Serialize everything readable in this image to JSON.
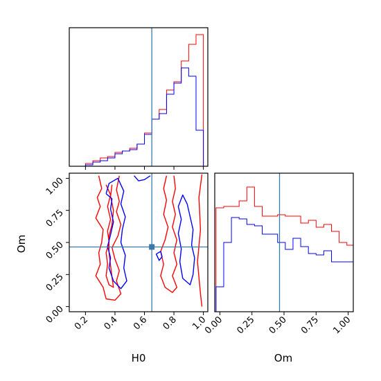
{
  "chart_data": {
    "type": "corner",
    "parameters": [
      "H0",
      "Om"
    ],
    "colors": {
      "red_run": "#ff0000",
      "blue_run": "#0000ff",
      "truth": "#3a78a8"
    },
    "truth": {
      "H0": 0.65,
      "Om": 0.465
    },
    "x_ticks": {
      "H0": {
        "values": [
          0.2,
          0.4,
          0.6,
          0.8,
          1.0
        ],
        "labels": [
          "0.2",
          "0.4",
          "0.6",
          "0.8",
          "1.0"
        ]
      },
      "Om": {
        "values": [
          0.0,
          0.25,
          0.5,
          0.75,
          1.0
        ],
        "labels": [
          "0.00",
          "0.25",
          "0.50",
          "0.75",
          "1.00"
        ]
      }
    },
    "y_ticks": {
      "Om": {
        "values": [
          0.0,
          0.25,
          0.5,
          0.75,
          1.0
        ],
        "labels": [
          "0.00",
          "0.25",
          "0.50",
          "0.75",
          "1.00"
        ]
      }
    },
    "axis_labels": {
      "x_left": "H0",
      "x_right": "Om",
      "y_bottom_left": "Om"
    },
    "xlim": {
      "H0": [
        0.09,
        1.03
      ],
      "Om": [
        -0.04,
        1.04
      ]
    },
    "ylim": {
      "Om": [
        -0.04,
        1.04
      ]
    },
    "hist_H0": {
      "bin_edges": [
        0.2,
        0.25,
        0.3,
        0.35,
        0.4,
        0.45,
        0.5,
        0.55,
        0.6,
        0.65,
        0.7,
        0.75,
        0.8,
        0.85,
        0.9,
        0.95,
        1.0
      ],
      "red": [
        0.02,
        0.04,
        0.06,
        0.07,
        0.1,
        0.11,
        0.13,
        0.16,
        0.24,
        0.34,
        0.41,
        0.55,
        0.61,
        0.76,
        0.88,
        0.95
      ],
      "blue": [
        0.01,
        0.03,
        0.04,
        0.06,
        0.09,
        0.11,
        0.12,
        0.16,
        0.23,
        0.34,
        0.38,
        0.52,
        0.6,
        0.71,
        0.65,
        0.26
      ],
      "ylim": [
        0,
        1.0
      ]
    },
    "hist_Om": {
      "bin_edges": [
        -0.03,
        0.03,
        0.09,
        0.15,
        0.21,
        0.27,
        0.33,
        0.39,
        0.45,
        0.51,
        0.57,
        0.63,
        0.69,
        0.75,
        0.81,
        0.87,
        0.93,
        0.99,
        1.04
      ],
      "red": [
        0.75,
        0.76,
        0.76,
        0.8,
        0.9,
        0.76,
        0.69,
        0.69,
        0.7,
        0.69,
        0.69,
        0.64,
        0.66,
        0.61,
        0.63,
        0.58,
        0.5,
        0.48
      ],
      "blue": [
        0.18,
        0.5,
        0.68,
        0.67,
        0.63,
        0.62,
        0.56,
        0.56,
        0.5,
        0.45,
        0.53,
        0.47,
        0.42,
        0.41,
        0.44,
        0.36,
        0.36,
        0.36
      ],
      "ylim": [
        0,
        1.0
      ]
    },
    "contours": {
      "red": [
        [
          [
            0.29,
            1.02
          ],
          [
            0.31,
            0.92
          ],
          [
            0.28,
            0.85
          ],
          [
            0.3,
            0.78
          ],
          [
            0.27,
            0.69
          ],
          [
            0.32,
            0.6
          ],
          [
            0.31,
            0.5
          ],
          [
            0.29,
            0.42
          ],
          [
            0.3,
            0.33
          ],
          [
            0.27,
            0.24
          ],
          [
            0.32,
            0.15
          ],
          [
            0.34,
            0.06
          ],
          [
            0.4,
            0.05
          ],
          [
            0.44,
            0.1
          ],
          [
            0.41,
            0.2
          ],
          [
            0.43,
            0.28
          ],
          [
            0.4,
            0.37
          ],
          [
            0.38,
            0.46
          ],
          [
            0.42,
            0.55
          ],
          [
            0.44,
            0.64
          ],
          [
            0.41,
            0.74
          ],
          [
            0.43,
            0.82
          ],
          [
            0.41,
            0.91
          ],
          [
            0.43,
            1.02
          ]
        ],
        [
          [
            0.34,
            0.95
          ],
          [
            0.37,
            0.87
          ],
          [
            0.35,
            0.78
          ],
          [
            0.37,
            0.68
          ],
          [
            0.35,
            0.59
          ],
          [
            0.36,
            0.5
          ],
          [
            0.34,
            0.42
          ],
          [
            0.35,
            0.33
          ],
          [
            0.34,
            0.24
          ],
          [
            0.36,
            0.17
          ],
          [
            0.39,
            0.15
          ],
          [
            0.38,
            0.23
          ],
          [
            0.37,
            0.32
          ],
          [
            0.36,
            0.42
          ],
          [
            0.36,
            0.55
          ],
          [
            0.38,
            0.64
          ],
          [
            0.39,
            0.75
          ],
          [
            0.37,
            0.86
          ],
          [
            0.38,
            0.95
          ]
        ],
        [
          [
            0.75,
            1.02
          ],
          [
            0.73,
            0.92
          ],
          [
            0.75,
            0.83
          ],
          [
            0.73,
            0.72
          ],
          [
            0.76,
            0.62
          ],
          [
            0.74,
            0.52
          ],
          [
            0.71,
            0.43
          ],
          [
            0.73,
            0.33
          ],
          [
            0.71,
            0.24
          ],
          [
            0.74,
            0.15
          ],
          [
            0.79,
            0.11
          ],
          [
            0.82,
            0.15
          ],
          [
            0.79,
            0.24
          ],
          [
            0.82,
            0.33
          ],
          [
            0.8,
            0.42
          ],
          [
            0.82,
            0.52
          ],
          [
            0.79,
            0.62
          ],
          [
            0.81,
            0.72
          ],
          [
            0.79,
            0.82
          ],
          [
            0.81,
            0.92
          ],
          [
            0.8,
            1.02
          ]
        ],
        [
          [
            0.99,
            1.03
          ],
          [
            0.97,
            0.85
          ],
          [
            0.98,
            0.6
          ],
          [
            0.96,
            0.35
          ],
          [
            0.98,
            0.1
          ],
          [
            0.99,
            0.0
          ]
        ]
      ],
      "blue": [
        [
          [
            0.34,
            0.88
          ],
          [
            0.38,
            0.84
          ],
          [
            0.37,
            0.76
          ],
          [
            0.39,
            0.66
          ],
          [
            0.37,
            0.56
          ],
          [
            0.35,
            0.47
          ],
          [
            0.37,
            0.38
          ],
          [
            0.36,
            0.3
          ],
          [
            0.39,
            0.2
          ],
          [
            0.44,
            0.14
          ],
          [
            0.48,
            0.2
          ],
          [
            0.46,
            0.3
          ],
          [
            0.47,
            0.4
          ],
          [
            0.44,
            0.5
          ],
          [
            0.45,
            0.6
          ],
          [
            0.47,
            0.7
          ],
          [
            0.44,
            0.8
          ],
          [
            0.46,
            0.9
          ],
          [
            0.42,
            1.0
          ],
          [
            0.36,
            0.96
          ],
          [
            0.34,
            0.88
          ]
        ],
        [
          [
            0.53,
            1.02
          ],
          [
            0.56,
            0.98
          ],
          [
            0.6,
            0.99
          ],
          [
            0.64,
            1.02
          ]
        ],
        [
          [
            0.86,
            0.22
          ],
          [
            0.84,
            0.35
          ],
          [
            0.85,
            0.45
          ],
          [
            0.83,
            0.57
          ],
          [
            0.85,
            0.68
          ],
          [
            0.83,
            0.78
          ],
          [
            0.86,
            0.87
          ],
          [
            0.89,
            0.8
          ],
          [
            0.91,
            0.7
          ],
          [
            0.93,
            0.6
          ],
          [
            0.92,
            0.48
          ],
          [
            0.94,
            0.38
          ],
          [
            0.93,
            0.25
          ],
          [
            0.91,
            0.17
          ],
          [
            0.86,
            0.22
          ]
        ],
        [
          [
            0.68,
            0.41
          ],
          [
            0.7,
            0.36
          ],
          [
            0.72,
            0.39
          ],
          [
            0.71,
            0.43
          ],
          [
            0.68,
            0.41
          ]
        ]
      ]
    }
  }
}
